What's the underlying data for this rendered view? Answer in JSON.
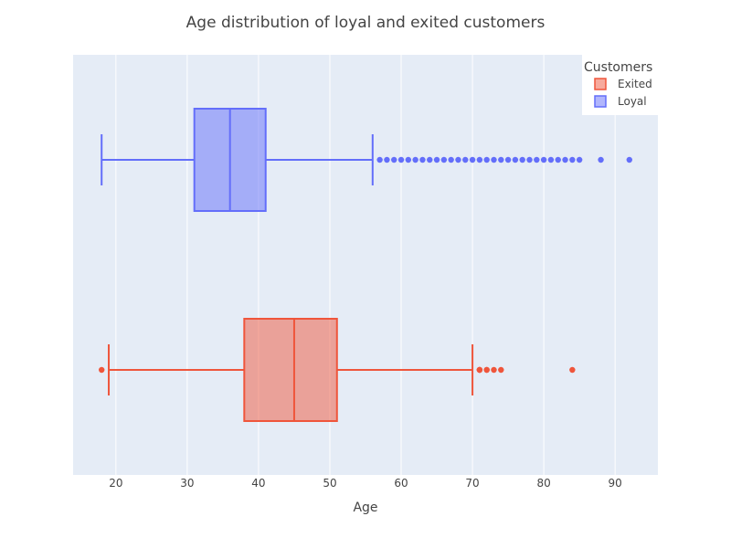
{
  "chart_data": {
    "type": "box",
    "orientation": "horizontal",
    "title": "Age distribution of loyal and exited customers",
    "xlabel": "Age",
    "ylabel": "",
    "xlim": [
      14,
      96
    ],
    "xticks": [
      20,
      30,
      40,
      50,
      60,
      70,
      80,
      90
    ],
    "grid": true,
    "legend": {
      "title": "Customers",
      "placement": "top-right"
    },
    "series": [
      {
        "name": "Exited",
        "color": "#EF553B",
        "fill": "rgba(239,85,59,0.5)",
        "min": 19,
        "q1": 38,
        "median": 45,
        "q3": 51,
        "max": 70,
        "outliers": [
          18,
          71,
          71,
          71,
          72,
          72,
          73,
          74,
          84
        ]
      },
      {
        "name": "Loyal",
        "color": "#636EFA",
        "fill": "rgba(99,110,250,0.5)",
        "min": 18,
        "q1": 31,
        "median": 36,
        "q3": 41,
        "max": 56,
        "outliers": [
          57,
          58,
          59,
          60,
          61,
          62,
          63,
          64,
          65,
          66,
          67,
          68,
          69,
          70,
          71,
          72,
          73,
          74,
          75,
          76,
          77,
          78,
          79,
          80,
          81,
          82,
          83,
          84,
          85,
          88,
          92
        ]
      }
    ]
  }
}
